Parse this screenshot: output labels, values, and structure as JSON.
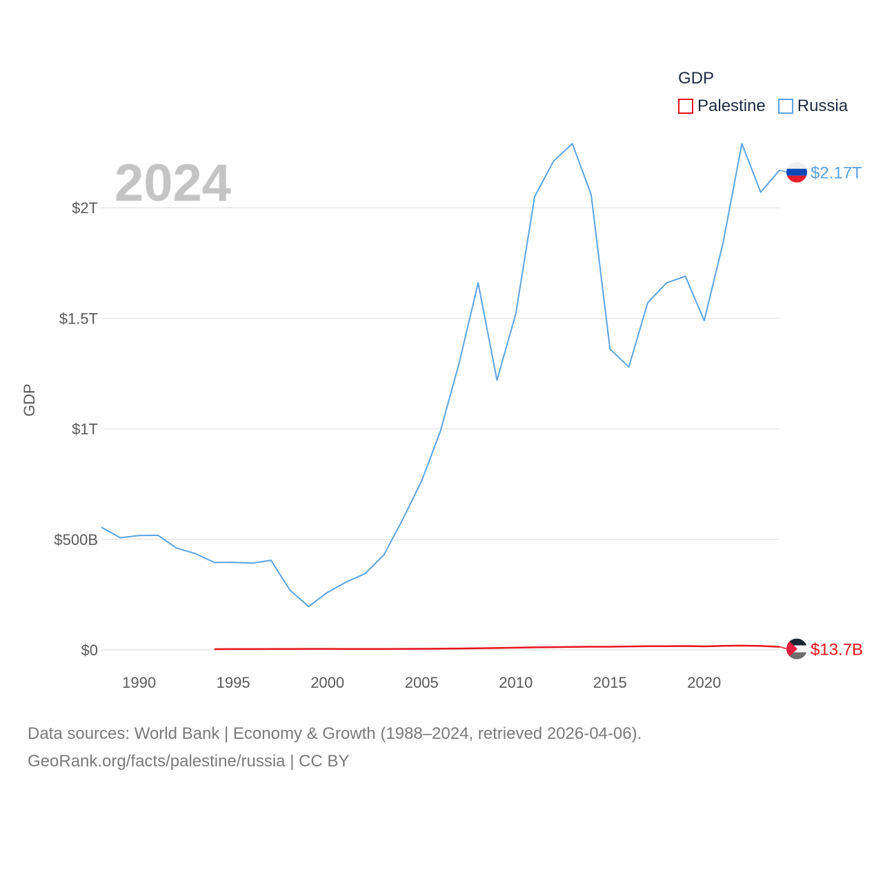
{
  "chart_data": {
    "type": "line",
    "title": "GDP",
    "current_year": "2024",
    "ylabel": "GDP",
    "xlabel": "",
    "xlim": [
      1988,
      2024
    ],
    "ylim": [
      0,
      2300000000000
    ],
    "grid": true,
    "legend_position": "top-right",
    "x_ticks": [
      1990,
      1995,
      2000,
      2005,
      2010,
      2015,
      2020
    ],
    "x_tick_labels": [
      "1990",
      "1995",
      "2000",
      "2005",
      "2010",
      "2015",
      "2020"
    ],
    "y_ticks": [
      0,
      500000000000,
      1000000000000,
      1500000000000,
      2000000000000
    ],
    "y_tick_labels": [
      "$0",
      "$500B",
      "$1T",
      "$1.5T",
      "$2T"
    ],
    "series": [
      {
        "name": "Palestine",
        "color": "#e8141b",
        "end_label": "$13.7B",
        "flag": "palestine-flag",
        "x": [
          1994,
          1995,
          1996,
          1997,
          1998,
          1999,
          2000,
          2001,
          2002,
          2003,
          2004,
          2005,
          2006,
          2007,
          2008,
          2009,
          2010,
          2011,
          2012,
          2013,
          2014,
          2015,
          2016,
          2017,
          2018,
          2019,
          2020,
          2021,
          2022,
          2023,
          2024
        ],
        "values": [
          3000000000,
          3300000000,
          3400000000,
          3800000000,
          4100000000,
          4300000000,
          4300000000,
          4000000000,
          3600000000,
          3900000000,
          4300000000,
          4800000000,
          5300000000,
          5800000000,
          7300000000,
          8100000000,
          9700000000,
          11200000000,
          12200000000,
          13500000000,
          13900000000,
          13900000000,
          15400000000,
          16100000000,
          16300000000,
          17100000000,
          15500000000,
          18100000000,
          19100000000,
          17400000000,
          13700000000
        ]
      },
      {
        "name": "Russia",
        "color": "#5ba3e3",
        "end_label": "$2.17T",
        "flag": "russia-flag",
        "x": [
          1988,
          1989,
          1990,
          1991,
          1992,
          1993,
          1994,
          1995,
          1996,
          1997,
          1998,
          1999,
          2000,
          2001,
          2002,
          2003,
          2004,
          2005,
          2006,
          2007,
          2008,
          2009,
          2010,
          2011,
          2012,
          2013,
          2014,
          2015,
          2016,
          2017,
          2018,
          2019,
          2020,
          2021,
          2022,
          2023,
          2024
        ],
        "values": [
          555000000000,
          507000000000,
          517000000000,
          518000000000,
          460000000000,
          435000000000,
          395000000000,
          396000000000,
          392000000000,
          405000000000,
          271000000000,
          196000000000,
          260000000000,
          307000000000,
          345000000000,
          430000000000,
          591000000000,
          764000000000,
          990000000000,
          1300000000000,
          1660000000000,
          1220000000000,
          1520000000000,
          2050000000000,
          2210000000000,
          2290000000000,
          2060000000000,
          1360000000000,
          1280000000000,
          1570000000000,
          1660000000000,
          1690000000000,
          1490000000000,
          1840000000000,
          2290000000000,
          2070000000000,
          2170000000000
        ]
      }
    ]
  },
  "footer": {
    "line1": "Data sources: World Bank | Economy & Growth (1988–2024, retrieved 2026-04-06).",
    "line2": "GeoRank.org/facts/palestine/russia | CC BY"
  }
}
